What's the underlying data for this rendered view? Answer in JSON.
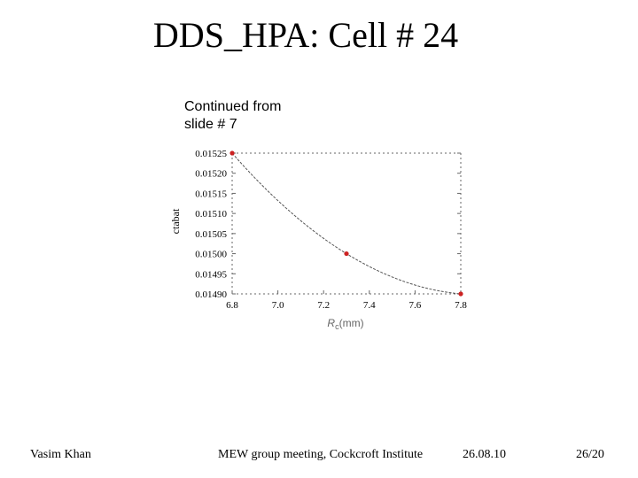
{
  "slide": {
    "title": "DDS_HPA: Cell # 24",
    "note_line1": "Continued from",
    "note_line2": "slide # 7"
  },
  "footer": {
    "author": "Vasim Khan",
    "event": "MEW group meeting, Cockcroft Institute",
    "date": "26.08.10",
    "page": "26/20"
  },
  "colors": {
    "point": "#cc2222",
    "curve": "#555555",
    "frame": "#666666"
  },
  "chart_data": {
    "type": "line",
    "ylabel": "ctabat",
    "xlabel": "R_c(mm)",
    "xlim": [
      6.8,
      7.8
    ],
    "ylim": [
      0.0149,
      0.01525
    ],
    "xticks": [
      "6.8",
      "7.0",
      "7.2",
      "7.4",
      "7.6",
      "7.8"
    ],
    "yticks": [
      "0.01490",
      "0.01495",
      "0.01500",
      "0.01505",
      "0.01510",
      "0.01515",
      "0.01520",
      "0.01525"
    ],
    "points": [
      {
        "x": 6.8,
        "y": 0.01525
      },
      {
        "x": 7.3,
        "y": 0.015
      },
      {
        "x": 7.8,
        "y": 0.0149
      }
    ],
    "grid": false
  }
}
